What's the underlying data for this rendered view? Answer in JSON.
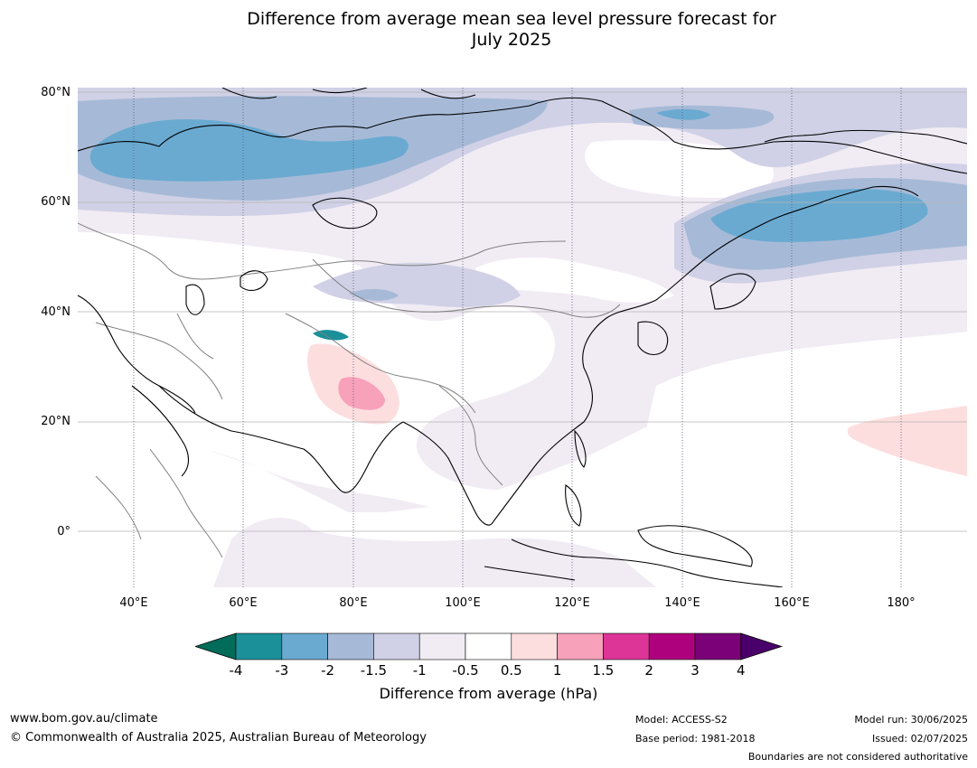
{
  "title_line1": "Difference from average mean sea level pressure forecast for",
  "title_line2": "July 2025",
  "lat_labels": [
    "80°N",
    "60°N",
    "40°N",
    "20°N",
    "0°"
  ],
  "lon_labels": [
    "40°E",
    "60°E",
    "80°E",
    "100°E",
    "120°E",
    "140°E",
    "160°E",
    "180°"
  ],
  "colorbar": {
    "ticks": [
      "-4",
      "-3",
      "-2",
      "-1.5",
      "-1",
      "-0.5",
      "0.5",
      "1",
      "1.5",
      "2",
      "3",
      "4"
    ],
    "colors": [
      "#1b9099",
      "#6aaad1",
      "#a6bad7",
      "#d0d1e6",
      "#f1ebf4",
      "#ffffff",
      "#fddedf",
      "#f7a1bb",
      "#dd3497",
      "#ae017e",
      "#7a0177"
    ],
    "under_color": "#016c59",
    "over_color": "#49006a",
    "label": "Difference from average (hPa)"
  },
  "footer": {
    "url": "www.bom.gov.au/climate",
    "copyright": "© Commonwealth of Australia 2025, Australian Bureau of Meteorology",
    "model": "Model: ACCESS-S2",
    "base_period": "Base period: 1981-2018",
    "model_run": "Model run: 30/06/2025",
    "issued": "Issued: 02/07/2025",
    "disclaimer": "Boundaries are not considered authoritative"
  }
}
